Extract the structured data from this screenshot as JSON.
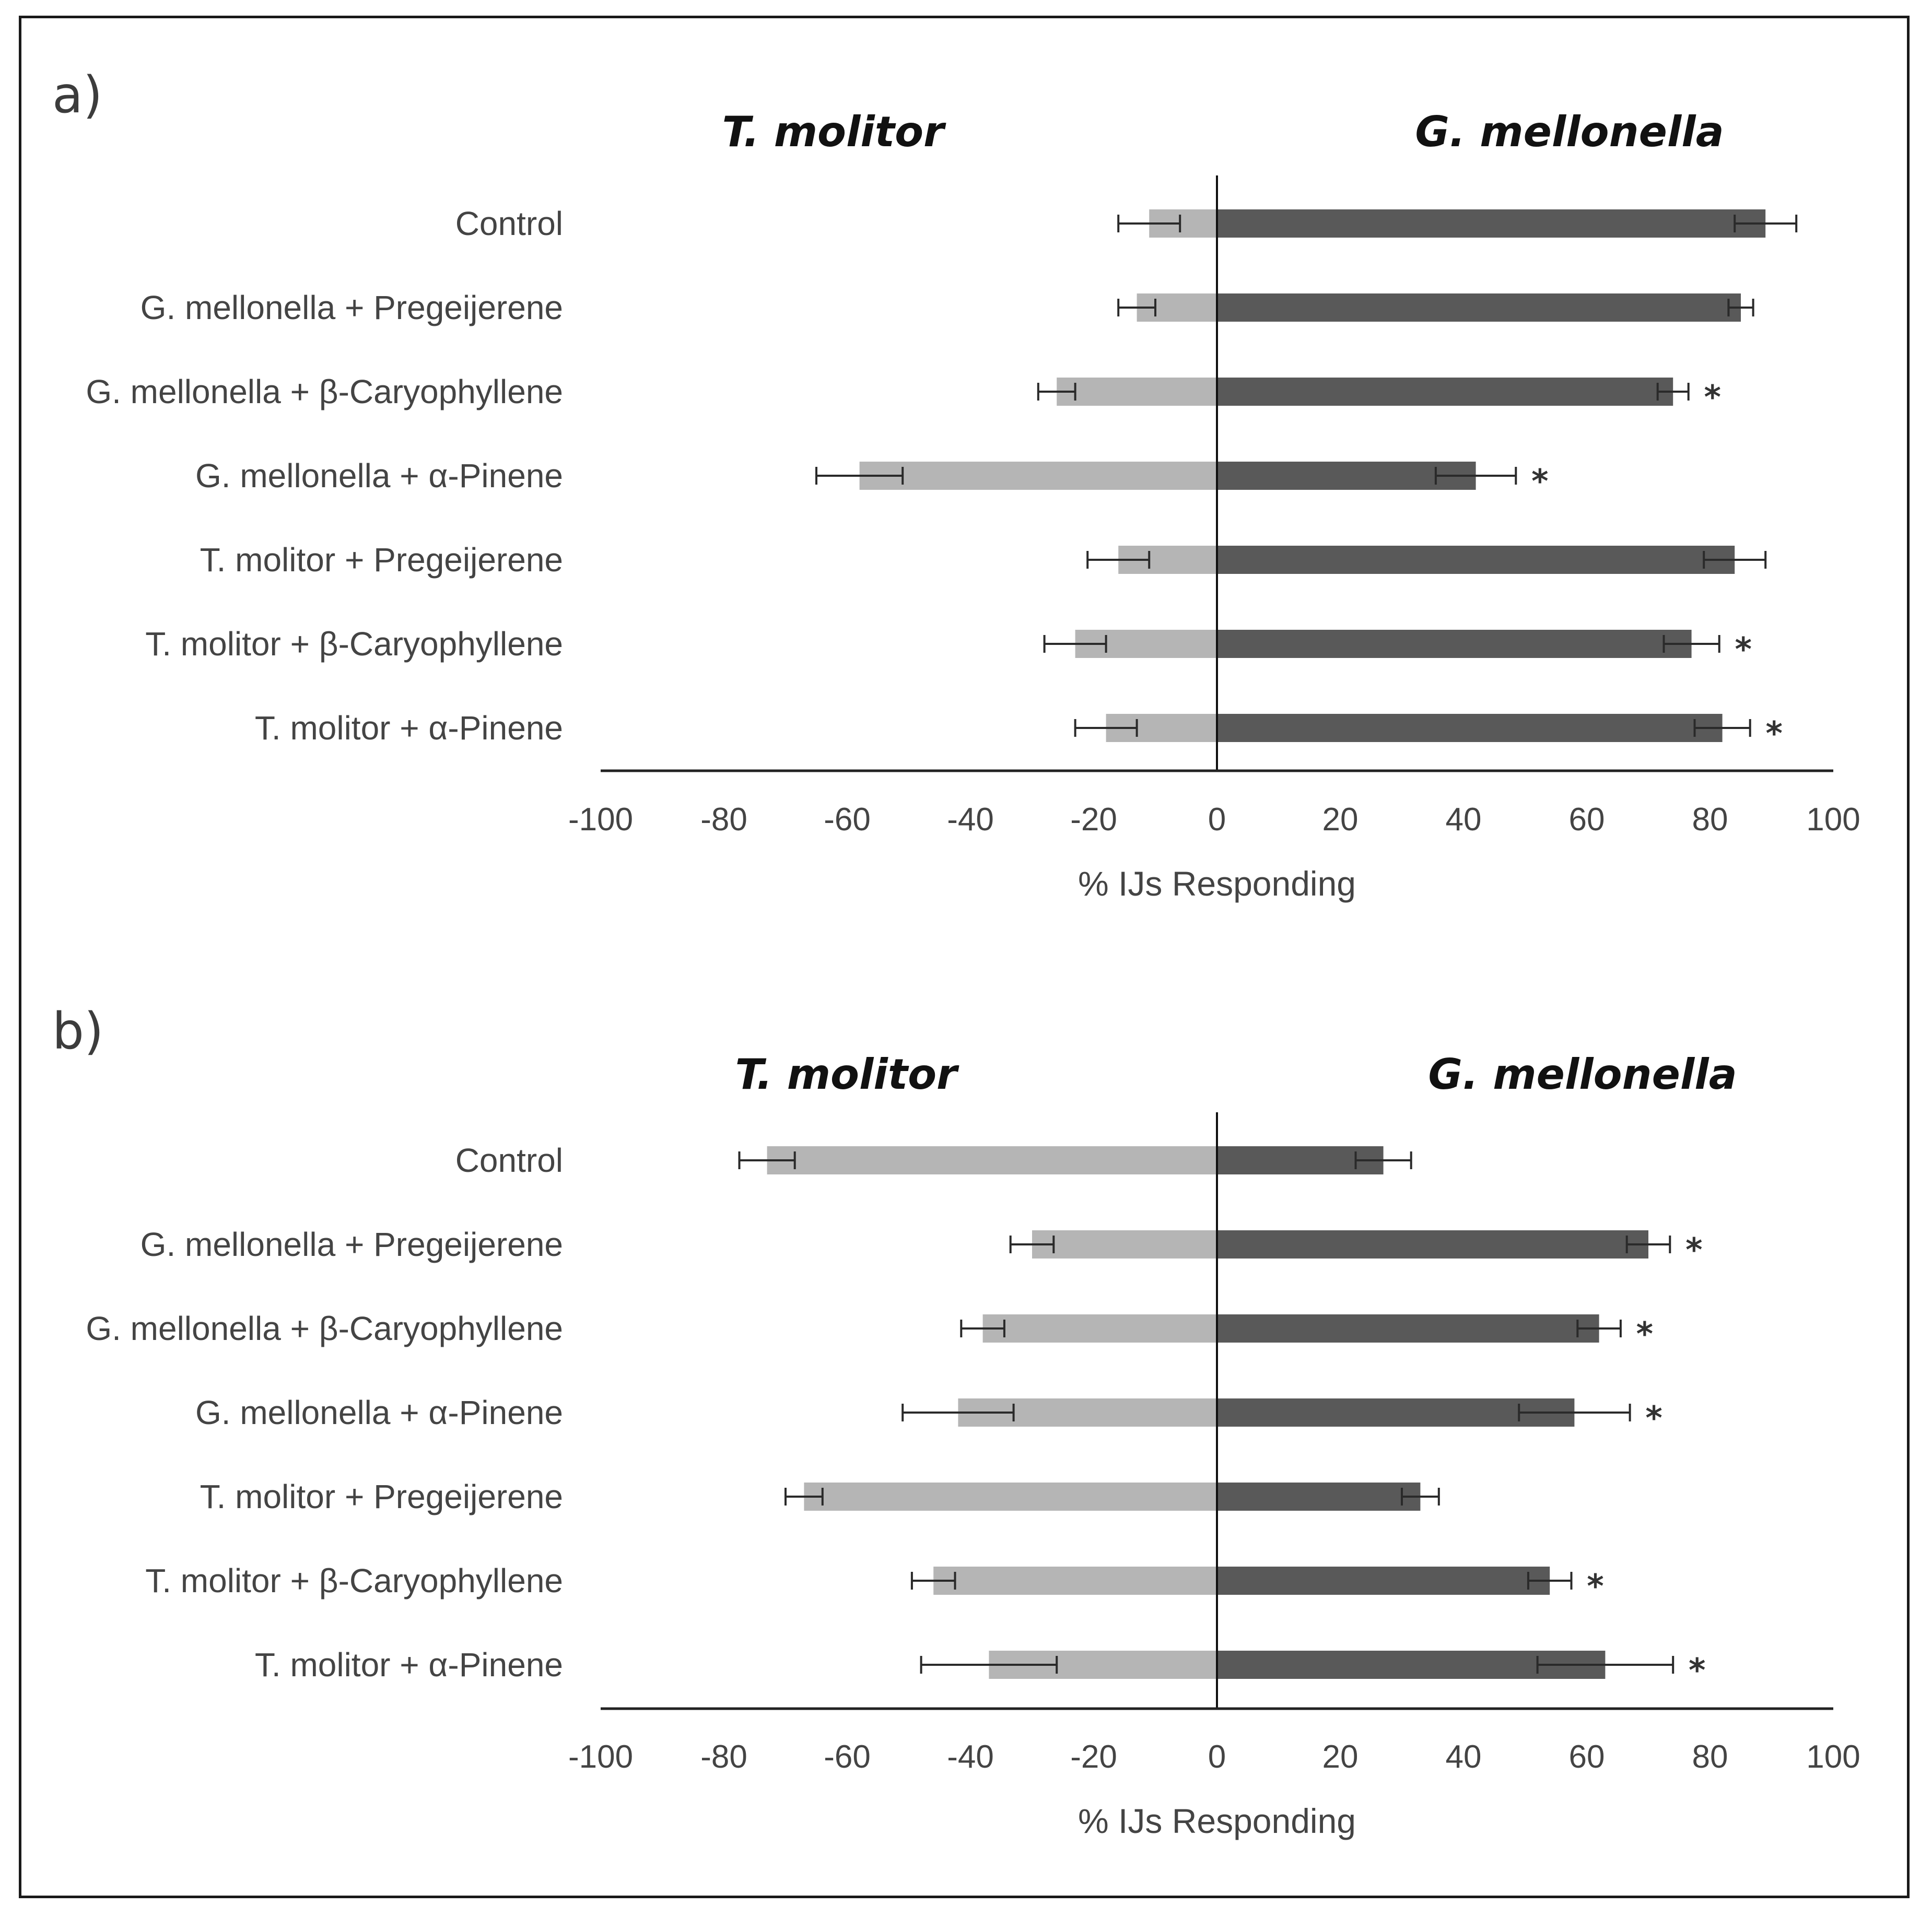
{
  "chart_data": [
    {
      "type": "bar",
      "panel_label": "a)",
      "left_title": "T. molitor",
      "right_title": "G. mellonella",
      "xlabel": "% IJs Responding",
      "xlim": [
        -100,
        100
      ],
      "xticks": [
        "-100",
        "-80",
        "-60",
        "-40",
        "-20",
        "0",
        "20",
        "40",
        "60",
        "80",
        "100"
      ],
      "categories": [
        "Control",
        "G. mellonella + Pregeijerene",
        "G. mellonella + β-Caryophyllene",
        "G. mellonella + α-Pinene",
        "T. molitor + Pregeijerene",
        "T. molitor + β-Caryophyllene",
        "T. molitor + α-Pinene"
      ],
      "series": [
        {
          "name": "T. molitor",
          "color": "#b5b5b5",
          "values": [
            -11,
            -13,
            -26,
            -58,
            -16,
            -23,
            -18
          ],
          "errors": [
            5,
            3,
            3,
            7,
            5,
            5,
            5
          ]
        },
        {
          "name": "G. mellonella",
          "color": "#595959",
          "values": [
            89,
            85,
            74,
            42,
            84,
            77,
            82
          ],
          "errors": [
            5,
            2,
            2.5,
            6.5,
            5,
            4.5,
            4.5
          ]
        }
      ],
      "significance": [
        "",
        "",
        "*",
        "*",
        "",
        "*",
        "*"
      ],
      "significance_marker": "*"
    },
    {
      "type": "bar",
      "panel_label": "b)",
      "left_title": "T. molitor",
      "right_title": "G. mellonella",
      "xlabel": "% IJs Responding",
      "xlim": [
        -100,
        100
      ],
      "xticks": [
        "-100",
        "-80",
        "-60",
        "-40",
        "-20",
        "0",
        "20",
        "40",
        "60",
        "80",
        "100"
      ],
      "categories": [
        "Control",
        "G. mellonella + Pregeijerene",
        "G. mellonella + β-Caryophyllene",
        "G. mellonella + α-Pinene",
        "T. molitor + Pregeijerene",
        "T. molitor + β-Caryophyllene",
        "T. molitor + α-Pinene"
      ],
      "series": [
        {
          "name": "T. molitor",
          "color": "#b5b5b5",
          "values": [
            -73,
            -30,
            -38,
            -42,
            -67,
            -46,
            -37
          ],
          "errors": [
            4.5,
            3.5,
            3.5,
            9,
            3,
            3.5,
            11
          ]
        },
        {
          "name": "G. mellonella",
          "color": "#595959",
          "values": [
            27,
            70,
            62,
            58,
            33,
            54,
            63
          ],
          "errors": [
            4.5,
            3.5,
            3.5,
            9,
            3,
            3.5,
            11
          ]
        }
      ],
      "significance": [
        "",
        "*",
        "*",
        "*",
        "",
        "*",
        "*"
      ],
      "significance_marker": "*"
    }
  ]
}
